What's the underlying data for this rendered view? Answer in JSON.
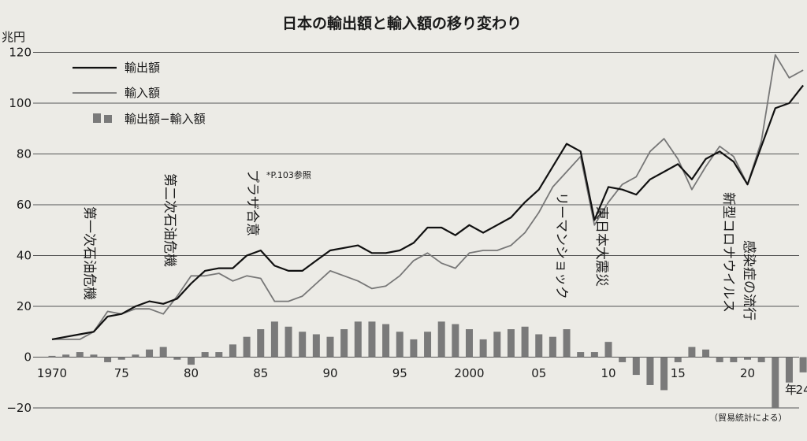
{
  "chart_data": {
    "type": "line",
    "title": "日本の輸出額と輸入額の移り変わり",
    "ylabel": "兆円",
    "ylim": [
      -20,
      120
    ],
    "yticks": [
      -20,
      0,
      20,
      40,
      60,
      80,
      100,
      120
    ],
    "xlim": [
      1970,
      2024
    ],
    "xticks": [
      {
        "x": 1970,
        "label": "1970"
      },
      {
        "x": 1975,
        "label": "75"
      },
      {
        "x": 1980,
        "label": "80"
      },
      {
        "x": 1985,
        "label": "85"
      },
      {
        "x": 1990,
        "label": "90"
      },
      {
        "x": 1995,
        "label": "95"
      },
      {
        "x": 2000,
        "label": "2000"
      },
      {
        "x": 2005,
        "label": "05"
      },
      {
        "x": 2010,
        "label": "10"
      },
      {
        "x": 2015,
        "label": "15"
      },
      {
        "x": 2020,
        "label": "20"
      },
      {
        "x": 2024,
        "label": "24"
      }
    ],
    "x_unit": "年",
    "grid": true,
    "legend_position": "top-left",
    "x": [
      1970,
      1971,
      1972,
      1973,
      1974,
      1975,
      1976,
      1977,
      1978,
      1979,
      1980,
      1981,
      1982,
      1983,
      1984,
      1985,
      1986,
      1987,
      1988,
      1989,
      1990,
      1991,
      1992,
      1993,
      1994,
      1995,
      1996,
      1997,
      1998,
      1999,
      2000,
      2001,
      2002,
      2003,
      2004,
      2005,
      2006,
      2007,
      2008,
      2009,
      2010,
      2011,
      2012,
      2013,
      2014,
      2015,
      2016,
      2017,
      2018,
      2019,
      2020,
      2021,
      2022,
      2023,
      2024
    ],
    "series": [
      {
        "name": "輸出額",
        "kind": "line",
        "color": "#111111",
        "values": [
          7,
          8,
          9,
          10,
          16,
          17,
          20,
          22,
          21,
          23,
          29,
          34,
          35,
          35,
          40,
          42,
          36,
          34,
          34,
          38,
          42,
          43,
          44,
          41,
          41,
          42,
          45,
          51,
          51,
          48,
          52,
          49,
          52,
          55,
          61,
          66,
          75,
          84,
          81,
          54,
          67,
          66,
          64,
          70,
          73,
          76,
          70,
          78,
          81,
          77,
          68,
          83,
          98,
          100,
          107
        ]
      },
      {
        "name": "輸入額",
        "kind": "line",
        "color": "#777777",
        "values": [
          7,
          7,
          7,
          10,
          18,
          17,
          19,
          19,
          17,
          24,
          32,
          32,
          33,
          30,
          32,
          31,
          22,
          22,
          24,
          29,
          34,
          32,
          30,
          27,
          28,
          32,
          38,
          41,
          37,
          35,
          41,
          42,
          42,
          44,
          49,
          57,
          67,
          73,
          79,
          52,
          61,
          68,
          71,
          81,
          86,
          78,
          66,
          75,
          83,
          79,
          68,
          85,
          119,
          110,
          113
        ]
      },
      {
        "name": "輸出額−輸入額",
        "kind": "bar",
        "color": "#7a7a7a",
        "values": [
          0.5,
          1,
          2,
          1,
          -2,
          -1,
          1,
          3,
          4,
          -1,
          -3,
          2,
          2,
          5,
          8,
          11,
          14,
          12,
          10,
          9,
          8,
          11,
          14,
          14,
          13,
          10,
          7,
          10,
          14,
          13,
          11,
          7,
          10,
          11,
          12,
          9,
          8,
          11,
          2,
          2,
          6,
          -2,
          -7,
          -11,
          -13,
          -2,
          4,
          3,
          -2,
          -2,
          -1,
          -2,
          -20,
          -10,
          -6
        ]
      }
    ],
    "annotations": [
      {
        "text": "第一次石油危機",
        "x": 1973,
        "y": 60
      },
      {
        "text": "第二次石油危機",
        "x": 1979,
        "y": 72
      },
      {
        "text": "プラザ合意",
        "x": 1985,
        "y": 75
      },
      {
        "text": "*P.103参照",
        "x": 1986,
        "y": 75
      },
      {
        "text": "リーマンショック",
        "x": 2008,
        "y": 65
      },
      {
        "text": "東日本大震災",
        "x": 2011,
        "y": 60
      },
      {
        "text": "新型コロナウイルス",
        "x": 2020,
        "y": 65
      },
      {
        "text": "感染症の流行",
        "x": 2022,
        "y": 46
      }
    ],
    "source": "（貿易統計による）"
  }
}
